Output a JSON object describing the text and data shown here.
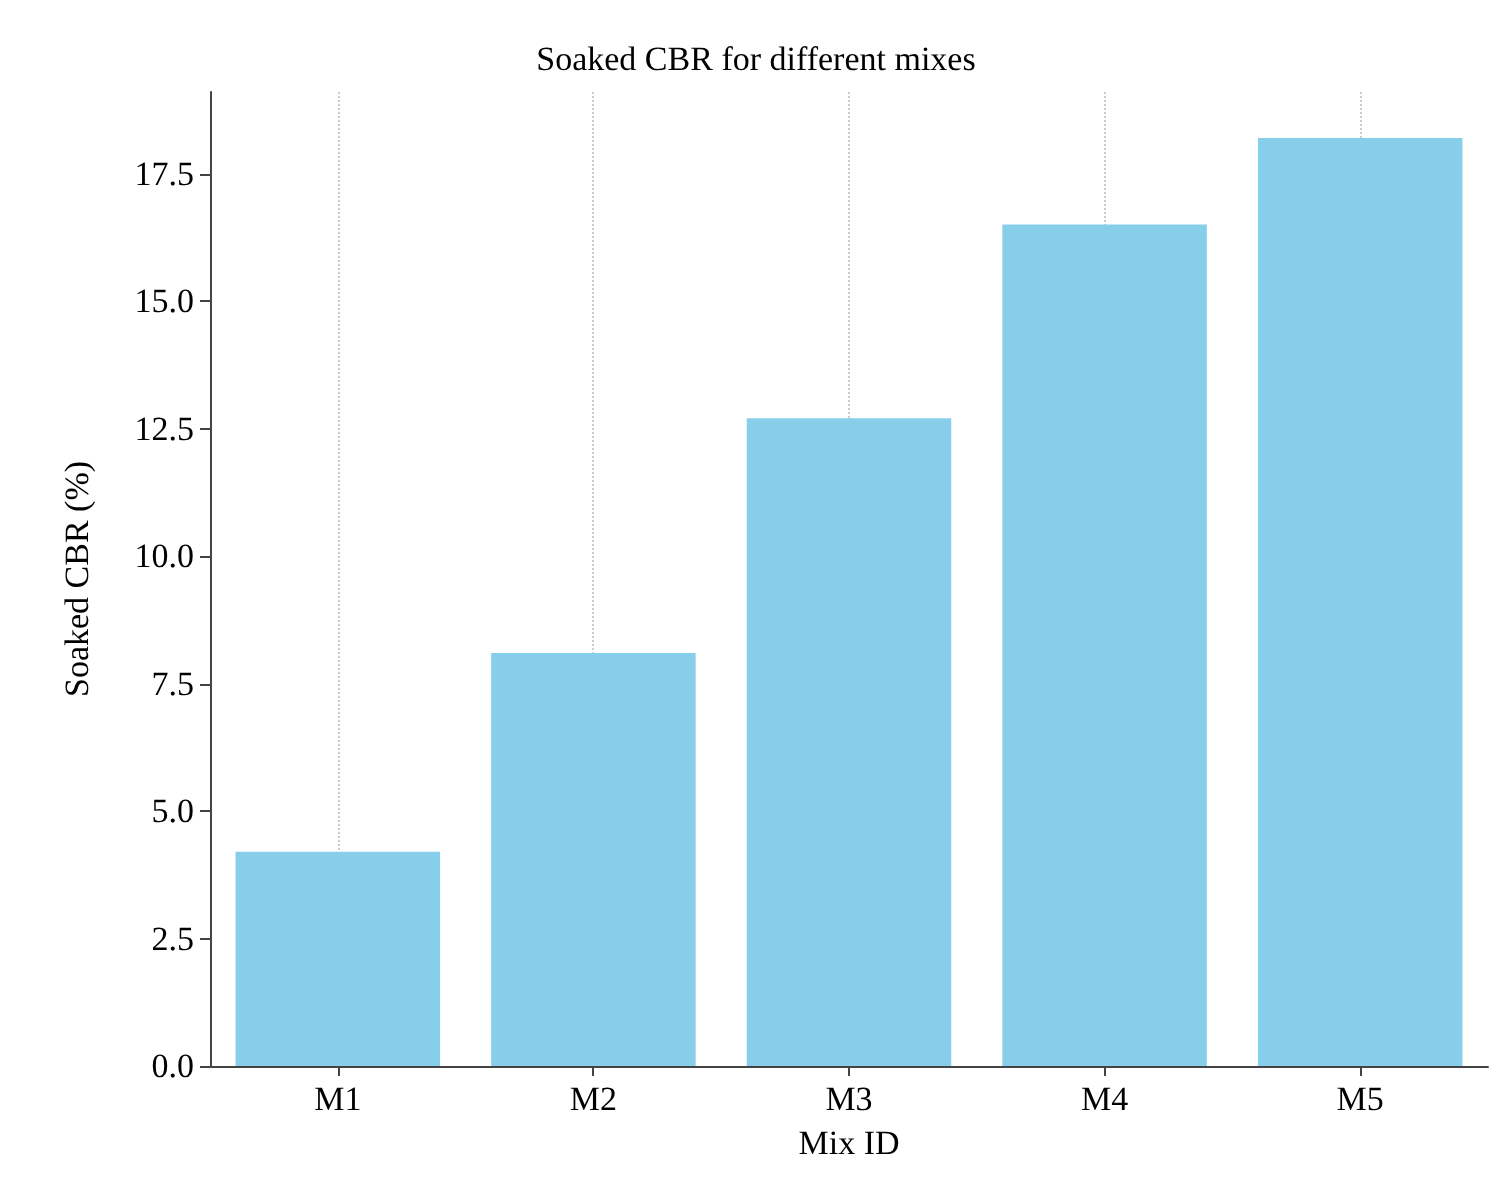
{
  "chart_data": {
    "type": "bar",
    "title": "Soaked CBR for different mixes",
    "xlabel": "Mix ID",
    "ylabel": "Soaked CBR (%)",
    "categories": [
      "M1",
      "M2",
      "M3",
      "M4",
      "M5"
    ],
    "values": [
      4.2,
      8.1,
      12.7,
      16.5,
      18.2
    ],
    "color": "#87ceeb",
    "ylim": [
      0,
      19.1
    ],
    "yticks": [
      {
        "value": 0,
        "label": "0.0"
      },
      2.5,
      {
        "value": 5,
        "label": "5.0"
      },
      7.5,
      {
        "value": 10,
        "label": "10.0"
      },
      12.5,
      {
        "value": 15,
        "label": "15.0"
      },
      17.5
    ],
    "grid": "x"
  }
}
